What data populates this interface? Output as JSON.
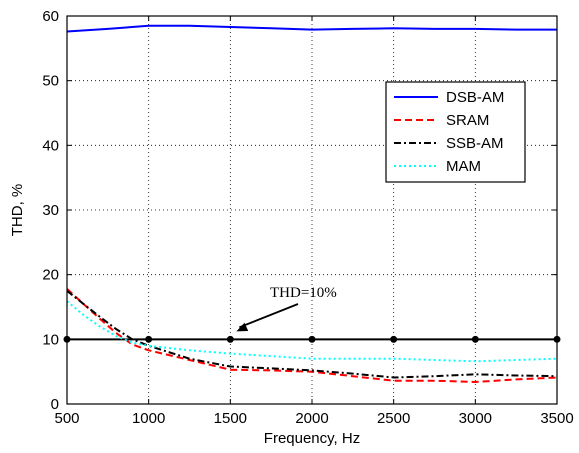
{
  "chart_data": {
    "type": "line",
    "xlabel": "Frequency, Hz",
    "ylabel": "THD, %",
    "xlim": [
      500,
      3500
    ],
    "ylim": [
      0,
      60
    ],
    "xticks": [
      500,
      1000,
      1500,
      2000,
      2500,
      3000,
      3500
    ],
    "yticks": [
      0,
      10,
      20,
      30,
      40,
      50,
      60
    ],
    "xtick_labels": [
      "500",
      "1000",
      "1500",
      "2000",
      "2500",
      "3000",
      "3500"
    ],
    "ytick_labels": [
      "0",
      "10",
      "20",
      "30",
      "40",
      "50",
      "60"
    ],
    "grid": true,
    "legend_position": "upper-right",
    "series": [
      {
        "name": "DSB-AM",
        "color": "#0000ff",
        "style": "solid",
        "x": [
          500,
          750,
          1000,
          1250,
          1500,
          1750,
          2000,
          2250,
          2500,
          2750,
          3000,
          3250,
          3500
        ],
        "y": [
          57.6,
          58.0,
          58.5,
          58.5,
          58.3,
          58.1,
          57.9,
          58.0,
          58.1,
          58.0,
          58.0,
          57.9,
          57.9
        ]
      },
      {
        "name": "SRAM",
        "color": "#ff0000",
        "style": "dashed",
        "x": [
          500,
          600,
          700,
          800,
          900,
          1000,
          1250,
          1500,
          1750,
          2000,
          2250,
          2500,
          2750,
          3000,
          3250,
          3500
        ],
        "y": [
          17.8,
          15.5,
          13.2,
          11.0,
          9.2,
          8.3,
          6.8,
          5.3,
          5.2,
          5.0,
          4.3,
          3.6,
          3.6,
          3.4,
          3.8,
          4.1
        ]
      },
      {
        "name": "SSB-AM",
        "color": "#000000",
        "style": "dashdot",
        "x": [
          500,
          600,
          700,
          800,
          900,
          1000,
          1250,
          1500,
          1750,
          2000,
          2250,
          2500,
          2750,
          3000,
          3250,
          3500
        ],
        "y": [
          17.5,
          15.5,
          13.5,
          11.6,
          10.0,
          9.0,
          7.0,
          5.8,
          5.5,
          5.2,
          4.7,
          4.1,
          4.3,
          4.6,
          4.4,
          4.3
        ]
      },
      {
        "name": "MAM",
        "color": "#00ffff",
        "style": "dotted",
        "x": [
          500,
          600,
          700,
          800,
          900,
          1000,
          1250,
          1500,
          1750,
          2000,
          2250,
          2500,
          2750,
          3000,
          3250,
          3500
        ],
        "y": [
          15.9,
          13.8,
          12.0,
          10.5,
          9.5,
          9.0,
          8.3,
          7.8,
          7.4,
          7.0,
          7.0,
          7.0,
          6.8,
          6.6,
          6.8,
          7.0
        ]
      }
    ],
    "reference_line": {
      "y": 10,
      "color": "#000000",
      "marker_x": [
        500,
        1000,
        1500,
        2000,
        2500,
        3000,
        3500
      ]
    },
    "annotation": {
      "text": "THD=10%",
      "point_x": 1500,
      "point_y": 10
    }
  }
}
